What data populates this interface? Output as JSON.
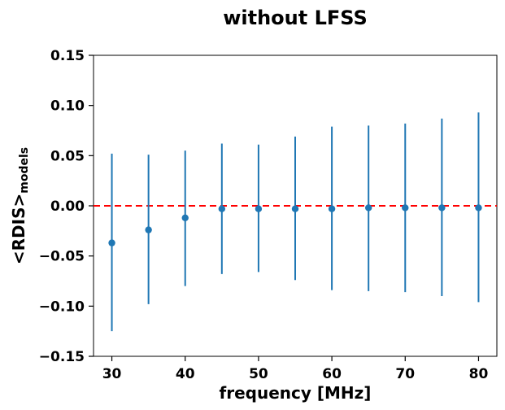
{
  "chart_data": {
    "type": "scatter",
    "title": "without LFSS",
    "xlabel": "frequency [MHz]",
    "ylabel_main": "<RDIS>",
    "ylabel_sub": "models",
    "xlim": [
      27.5,
      82.5
    ],
    "ylim": [
      -0.15,
      0.15
    ],
    "xticks": [
      30,
      40,
      50,
      60,
      70,
      80
    ],
    "xtick_labels": [
      "30",
      "40",
      "50",
      "60",
      "70",
      "80"
    ],
    "yticks": [
      -0.15,
      -0.1,
      -0.05,
      0.0,
      0.05,
      0.1,
      0.15
    ],
    "ytick_labels": [
      "−0.15",
      "−0.10",
      "−0.05",
      "0.00",
      "0.05",
      "0.10",
      "0.15"
    ],
    "grid": false,
    "reference_line": {
      "y": 0.0,
      "color": "#ff0000",
      "style": "dashed"
    },
    "series": [
      {
        "color": "#1f77b4",
        "points": [
          {
            "x": 30,
            "y": -0.037,
            "ylow": -0.125,
            "yhigh": 0.052
          },
          {
            "x": 35,
            "y": -0.024,
            "ylow": -0.098,
            "yhigh": 0.051
          },
          {
            "x": 40,
            "y": -0.012,
            "ylow": -0.08,
            "yhigh": 0.055
          },
          {
            "x": 45,
            "y": -0.003,
            "ylow": -0.068,
            "yhigh": 0.062
          },
          {
            "x": 50,
            "y": -0.003,
            "ylow": -0.066,
            "yhigh": 0.061
          },
          {
            "x": 55,
            "y": -0.003,
            "ylow": -0.074,
            "yhigh": 0.069
          },
          {
            "x": 60,
            "y": -0.003,
            "ylow": -0.084,
            "yhigh": 0.079
          },
          {
            "x": 65,
            "y": -0.002,
            "ylow": -0.085,
            "yhigh": 0.08
          },
          {
            "x": 70,
            "y": -0.002,
            "ylow": -0.086,
            "yhigh": 0.082
          },
          {
            "x": 75,
            "y": -0.002,
            "ylow": -0.09,
            "yhigh": 0.087
          },
          {
            "x": 80,
            "y": -0.002,
            "ylow": -0.096,
            "yhigh": 0.093
          }
        ]
      }
    ]
  }
}
